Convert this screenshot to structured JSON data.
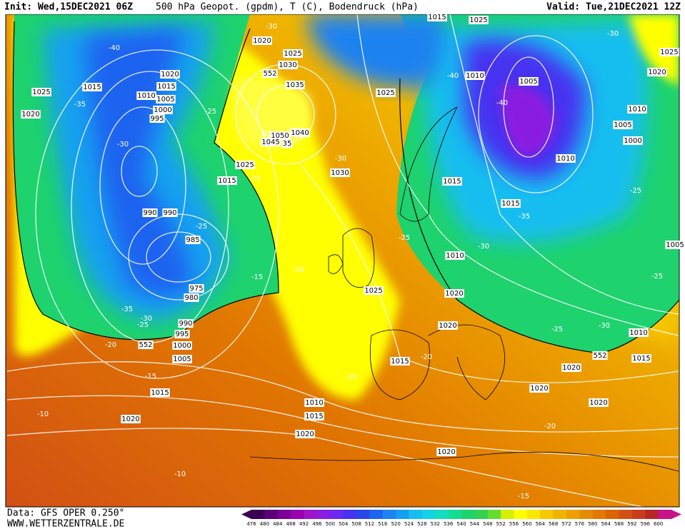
{
  "header": {
    "init": "Init: Wed,15DEC2021 06Z",
    "title": "500 hPa Geopot. (gpdm), T (C), Bodendruck (hPa)",
    "valid": "Valid: Tue,21DEC2021 12Z"
  },
  "footer": {
    "data": "Data: GFS OPER 0.250°",
    "site": "WWW.WETTERZENTRALE.DE"
  },
  "legend": {
    "values": [
      476,
      480,
      484,
      488,
      492,
      496,
      500,
      504,
      508,
      512,
      516,
      520,
      524,
      528,
      532,
      536,
      540,
      544,
      548,
      552,
      556,
      560,
      564,
      568,
      572,
      576,
      580,
      584,
      588,
      592,
      596,
      600
    ],
    "colors": [
      "#3c0050",
      "#5a0078",
      "#7a0096",
      "#9800b0",
      "#a014c8",
      "#8a1ee0",
      "#6a28f0",
      "#4632f0",
      "#2846e6",
      "#1e64f0",
      "#1e82f0",
      "#14a0f0",
      "#14bef0",
      "#14d2e6",
      "#14dcbe",
      "#14dc96",
      "#1ed26e",
      "#32d250",
      "#64dc32",
      "#d2f000",
      "#ffff00",
      "#fae600",
      "#f5c800",
      "#f0b400",
      "#eba000",
      "#e68c00",
      "#e17800",
      "#dc6400",
      "#d25014",
      "#c83c1e",
      "#b42828",
      "#c8148c"
    ]
  },
  "map": {
    "isobar_labels": [
      1015,
      1025,
      1020,
      1025,
      1030,
      1035,
      1020,
      1015,
      1015,
      1025,
      1010,
      1005,
      1000,
      995,
      1020,
      1050,
      1040,
      1045,
      35,
      1025,
      1015,
      1030,
      1025,
      1010,
      1005,
      1010,
      1010,
      1005,
      1000,
      1015,
      1015,
      1010,
      1020,
      1025,
      990,
      990,
      985,
      975,
      980,
      990,
      995,
      1000,
      1005,
      1015,
      1020,
      1025,
      1020,
      1020,
      1015,
      1010,
      1015,
      1020,
      1020,
      1020,
      1020,
      1020,
      1015,
      1010,
      1005
    ],
    "temperature_labels": [
      -30,
      -40,
      -35,
      -25,
      -30,
      -25,
      -25,
      -30,
      -25,
      -15,
      -20,
      -35,
      -30,
      -25,
      -20,
      -15,
      -10,
      -10,
      -20,
      -20,
      -25,
      -30,
      -35,
      -40,
      -40,
      -30,
      -25,
      -25,
      -25,
      -30,
      -20,
      -15
    ],
    "contour_552_labels": [
      552,
      552,
      552
    ]
  }
}
